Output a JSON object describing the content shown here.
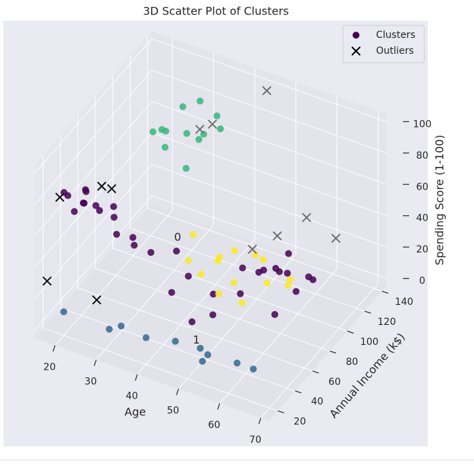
{
  "chart_data": {
    "type": "scatter3d",
    "title": "3D Scatter Plot of Clusters",
    "xlabel": "Age",
    "ylabel": "Annual Income (k$)",
    "zlabel": "Spending Score (1-100)",
    "xlim": [
      15,
      72
    ],
    "ylim": [
      10,
      145
    ],
    "zlim": [
      -5,
      105
    ],
    "xticks": [
      20,
      30,
      40,
      50,
      60,
      70
    ],
    "yticks": [
      20,
      40,
      60,
      80,
      100,
      120,
      140
    ],
    "zticks": [
      0,
      20,
      40,
      60,
      80,
      100
    ],
    "grid": true,
    "legend": "upper right",
    "annotations": [
      {
        "text": "0",
        "x": 35,
        "y": 80,
        "z": 33,
        "color": "#333333"
      },
      {
        "text": "1",
        "x": 48,
        "y": 40,
        "z": 5,
        "color": "#31688e"
      }
    ],
    "series": [
      {
        "name": "Clusters",
        "color": "#440154",
        "marker": "o",
        "x": [
          21,
          23,
          19,
          25,
          27,
          22,
          30,
          24,
          32,
          28,
          35,
          20,
          33,
          26,
          38,
          45,
          50,
          55,
          60,
          62,
          65,
          68,
          70,
          58,
          52,
          48,
          66,
          63,
          57,
          42,
          68,
          70,
          40,
          45,
          50,
          55,
          60,
          52,
          47,
          58,
          62,
          65,
          43,
          56,
          53,
          67,
          49,
          30,
          33,
          35,
          32,
          29,
          37,
          34,
          31,
          36,
          38,
          28,
          33,
          20,
          30,
          40,
          45,
          50,
          55,
          60,
          65,
          35,
          52
        ],
        "y": [
          20,
          18,
          25,
          22,
          28,
          33,
          30,
          38,
          24,
          40,
          30,
          45,
          38,
          15,
          35,
          45,
          50,
          60,
          55,
          65,
          55,
          60,
          65,
          70,
          40,
          35,
          45,
          75,
          48,
          40,
          50,
          70,
          55,
          45,
          55,
          50,
          60,
          65,
          50,
          45,
          55,
          65,
          60,
          70,
          42,
          58,
          62,
          90,
          100,
          110,
          120,
          80,
          95,
          130,
          105,
          85,
          115,
          95,
          75,
          20,
          25,
          20,
          30,
          35,
          20,
          30,
          25,
          15,
          28
        ],
        "z": [
          85,
          78,
          82,
          90,
          76,
          73,
          80,
          70,
          68,
          65,
          60,
          72,
          58,
          88,
          55,
          40,
          30,
          45,
          50,
          48,
          55,
          42,
          50,
          40,
          25,
          20,
          35,
          52,
          38,
          30,
          60,
          45,
          45,
          50,
          48,
          42,
          55,
          50,
          40,
          35,
          45,
          40,
          55,
          48,
          38,
          50,
          45,
          90,
          85,
          80,
          92,
          95,
          88,
          78,
          97,
          75,
          83,
          86,
          92,
          10,
          5,
          12,
          8,
          5,
          15,
          8,
          12,
          18,
          3
        ],
        "point_colors": [
          "#440154",
          "#440154",
          "#440154",
          "#440154",
          "#440154",
          "#440154",
          "#440154",
          "#440154",
          "#440154",
          "#440154",
          "#440154",
          "#440154",
          "#440154",
          "#440154",
          "#440154",
          "#440154",
          "#440154",
          "#440154",
          "#440154",
          "#440154",
          "#440154",
          "#440154",
          "#440154",
          "#440154",
          "#440154",
          "#440154",
          "#440154",
          "#440154",
          "#440154",
          "#440154",
          "#440154",
          "#440154",
          "#440154",
          "#fde725",
          "#fde725",
          "#fde725",
          "#fde725",
          "#fde725",
          "#fde725",
          "#fde725",
          "#fde725",
          "#fde725",
          "#fde725",
          "#fde725",
          "#fde725",
          "#fde725",
          "#fde725",
          "#35b779",
          "#35b779",
          "#35b779",
          "#35b779",
          "#35b779",
          "#35b779",
          "#35b779",
          "#35b779",
          "#35b779",
          "#35b779",
          "#35b779",
          "#35b779",
          "#31688e",
          "#31688e",
          "#31688e",
          "#31688e",
          "#31688e",
          "#31688e",
          "#31688e",
          "#31688e",
          "#31688e",
          "#31688e"
        ]
      },
      {
        "name": "Outliers",
        "color": "#000000",
        "marker": "x",
        "x": [
          18,
          17,
          28,
          25,
          27,
          44,
          35,
          33,
          55,
          60,
          65,
          50
        ],
        "y": [
          25,
          15,
          20,
          40,
          42,
          140,
          120,
          115,
          100,
          110,
          120,
          95
        ],
        "z": [
          78,
          30,
          25,
          82,
          81,
          97,
          80,
          78,
          40,
          50,
          35,
          30
        ],
        "point_colors": [
          "#111111",
          "#111111",
          "#111111",
          "#111111",
          "#111111",
          "#6e6e6e",
          "#6e6e6e",
          "#6e6e6e",
          "#6e6e6e",
          "#6e6e6e",
          "#6e6e6e",
          "#6e6e6e"
        ]
      }
    ]
  }
}
